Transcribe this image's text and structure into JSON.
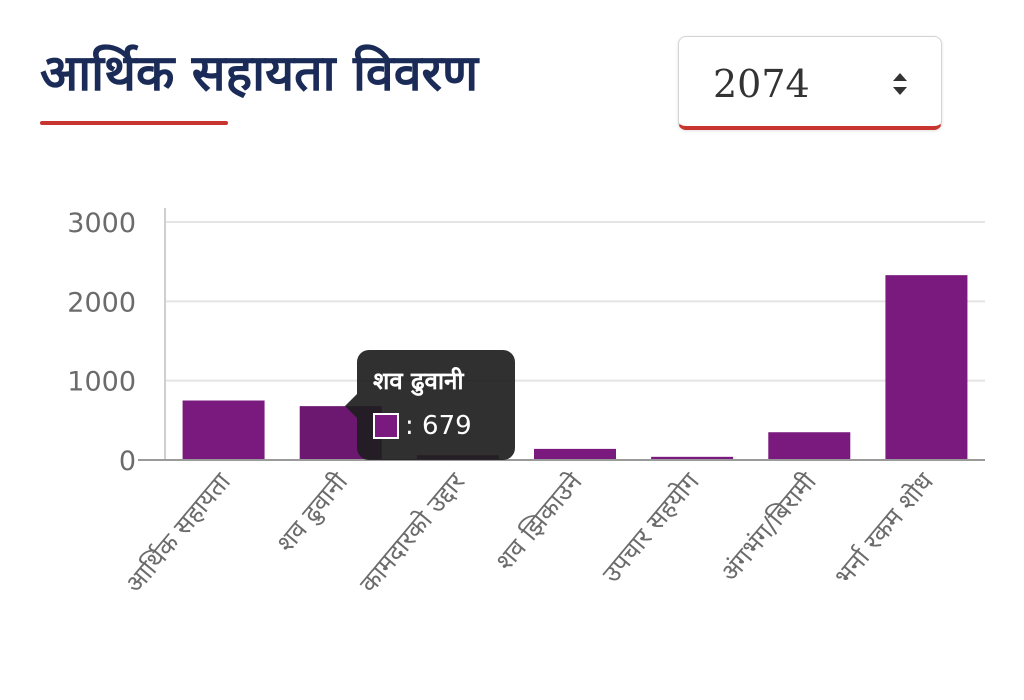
{
  "header": {
    "title": "आर्थिक सहायता विवरण"
  },
  "year_select": {
    "value": "2074",
    "arrow_icon": "up-down-arrows-icon"
  },
  "colors": {
    "bar": "#7a1a7e",
    "bar_active": "#6c1870",
    "accent": "#c8352e",
    "title": "#1a2b57"
  },
  "tooltip": {
    "title": "शव ढुवानी",
    "value": ": 679"
  },
  "chart_data": {
    "type": "bar",
    "categories": [
      "आर्थिक सहायता",
      "शव ढुवानी",
      "कामदारको उद्दार",
      "शव झिकाउने",
      "उपचार सहयोग",
      "अंगभंग/बिरामी",
      "भर्ना रकम शोध"
    ],
    "values": [
      750,
      679,
      60,
      140,
      40,
      350,
      2330
    ],
    "title": "",
    "xlabel": "",
    "ylabel": "",
    "ylim": [
      0,
      3000
    ],
    "yticks": [
      "0",
      "1000",
      "2000",
      "3000"
    ],
    "grid": true,
    "legend": "none",
    "active_index": 1
  }
}
